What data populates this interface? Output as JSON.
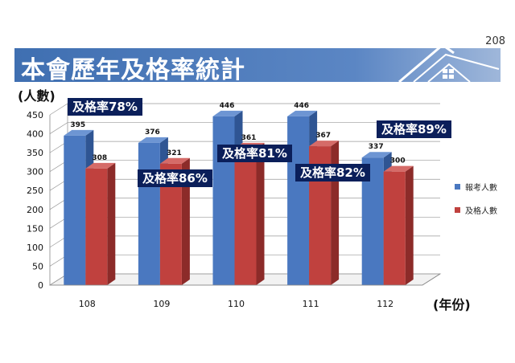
{
  "page_number": "208",
  "title": "本會歷年及格率統計",
  "icons": {
    "banner": "house-icon"
  },
  "ylabel": "(人數)",
  "xlabel": "(年份)",
  "colors": {
    "examinees": "#4a78c0",
    "passed": "#c0413e",
    "callout_bg": "#0b1f5a",
    "banner": "#3f6fb1"
  },
  "legend": {
    "position": "right",
    "items": [
      "報考人數",
      "及格人數"
    ]
  },
  "callouts": [
    {
      "year": "108",
      "text": "及格率78%"
    },
    {
      "year": "109",
      "text": "及格率86%"
    },
    {
      "year": "110",
      "text": "及格率81%"
    },
    {
      "year": "111",
      "text": "及格率82%"
    },
    {
      "year": "112",
      "text": "及格率89%"
    }
  ],
  "chart_data": {
    "type": "bar",
    "categories": [
      "108",
      "109",
      "110",
      "111",
      "112"
    ],
    "series": [
      {
        "name": "報考人數",
        "values": [
          395,
          376,
          446,
          446,
          337
        ]
      },
      {
        "name": "及格人數",
        "values": [
          308,
          321,
          361,
          367,
          300
        ]
      }
    ],
    "ylim": [
      0,
      450
    ],
    "yticks": [
      0,
      50,
      100,
      150,
      200,
      250,
      300,
      350,
      400,
      450
    ],
    "grid": true,
    "three_d": true
  }
}
